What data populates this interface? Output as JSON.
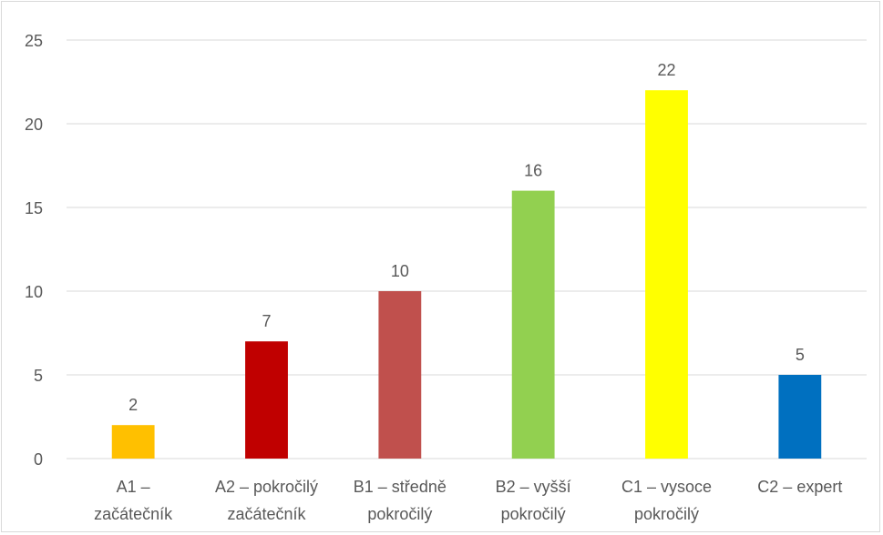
{
  "chart_data": {
    "type": "bar",
    "title": "",
    "xlabel": "",
    "ylabel": "",
    "ylim": [
      0,
      25
    ],
    "yticks": [
      0,
      5,
      10,
      15,
      20,
      25
    ],
    "grid": true,
    "legend": "none",
    "categories": [
      [
        "A1 –",
        "začátečník"
      ],
      [
        "A2 – pokročilý",
        "začátečník"
      ],
      [
        "B1 – středně",
        "pokročilý"
      ],
      [
        "B2 – vyšší",
        "pokročilý"
      ],
      [
        "C1 – vysoce",
        "pokročilý"
      ],
      [
        "C2 – expert"
      ]
    ],
    "values": [
      2,
      7,
      10,
      16,
      22,
      5
    ],
    "bar_colors": [
      "#ffc000",
      "#c00000",
      "#c0504d",
      "#92d050",
      "#ffff00",
      "#0070c0"
    ],
    "gridline_color": "#d9d9d9",
    "text_color": "#595959"
  }
}
